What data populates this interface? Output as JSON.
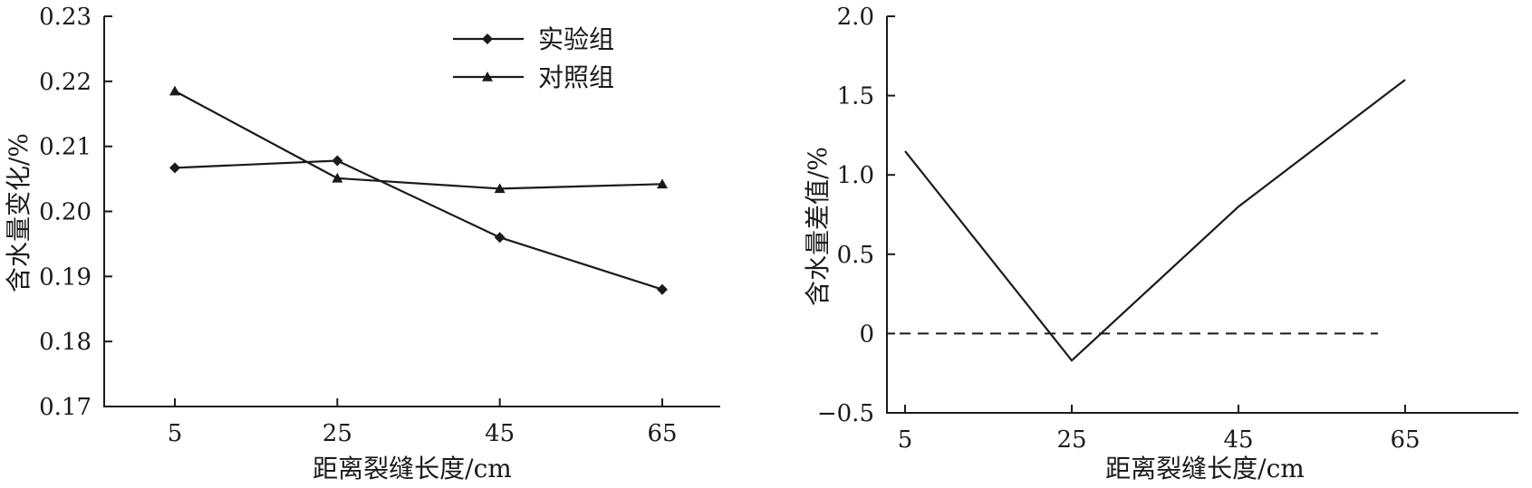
{
  "chart_data": [
    {
      "type": "line",
      "xlabel": "距离裂缝长度/cm",
      "ylabel": "含水量变化/%",
      "x": [
        5,
        25,
        45,
        65
      ],
      "x_ticks": [
        "5",
        "25",
        "45",
        "65"
      ],
      "ylim": [
        0.17,
        0.23
      ],
      "y_ticks": [
        "0.17",
        "0.18",
        "0.19",
        "0.20",
        "0.21",
        "0.22",
        "0.23"
      ],
      "grid": false,
      "legend_position": "top-center",
      "series": [
        {
          "name": "实验组",
          "marker": "diamond",
          "values": [
            0.2067,
            0.2078,
            0.196,
            0.188
          ]
        },
        {
          "name": "对照组",
          "marker": "triangle",
          "values": [
            0.2185,
            0.2051,
            0.2035,
            0.2042
          ]
        }
      ]
    },
    {
      "type": "line",
      "xlabel": "距离裂缝长度/cm",
      "ylabel": "含水量差值/%",
      "x": [
        5,
        25,
        45,
        65
      ],
      "x_ticks": [
        "5",
        "25",
        "45",
        "65"
      ],
      "ylim": [
        -0.5,
        2.0
      ],
      "y_ticks": [
        "−0.5",
        "0",
        "0.5",
        "1.0",
        "1.5",
        "2.0"
      ],
      "grid": false,
      "reference_line": {
        "y": 0,
        "style": "dashed"
      },
      "series": [
        {
          "values": [
            1.15,
            -0.17,
            0.8,
            1.6
          ]
        }
      ]
    }
  ]
}
